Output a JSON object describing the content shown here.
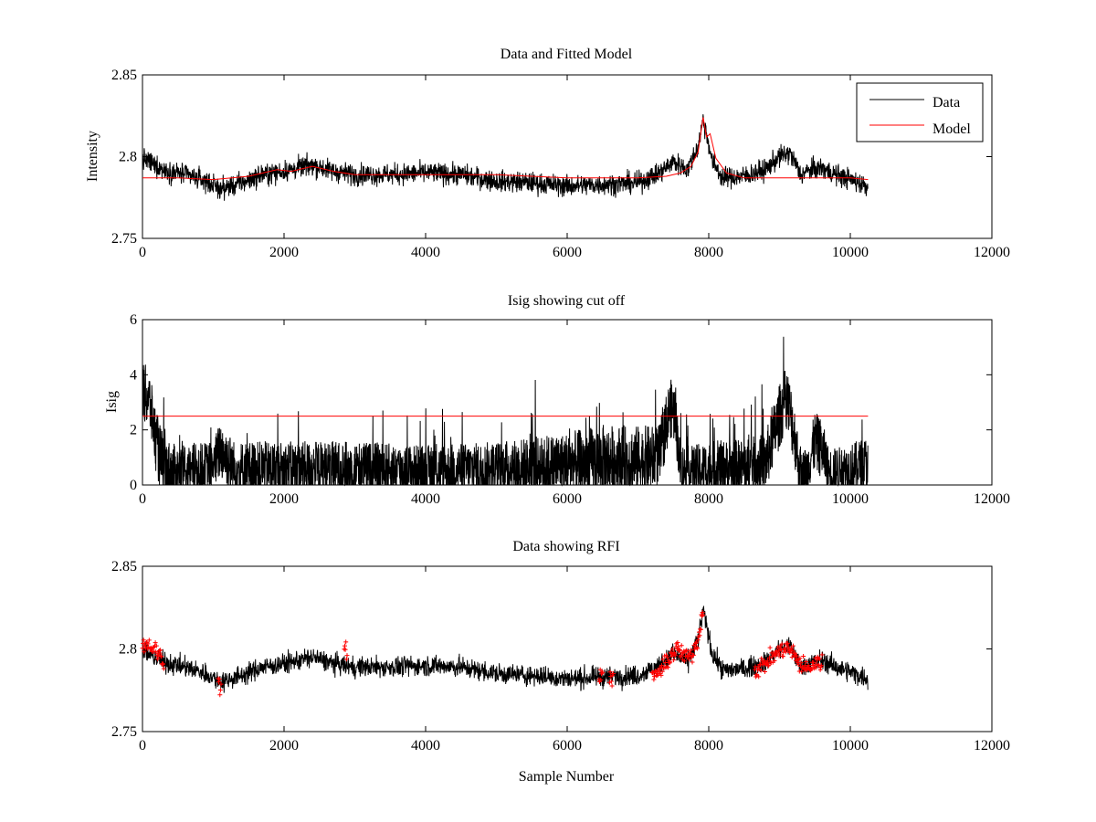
{
  "figure": {
    "background": "#ffffff",
    "data_color": "#000000",
    "model_color": "#ff0000",
    "xlabel": "Sample Number"
  },
  "chart_data": [
    {
      "type": "line",
      "title": "Data and Fitted Model",
      "xlabel": "",
      "ylabel": "Intensity",
      "xlim": [
        0,
        12000
      ],
      "ylim": [
        2.75,
        2.85
      ],
      "xticks": [
        0,
        2000,
        4000,
        6000,
        8000,
        10000,
        12000
      ],
      "xtick_labels": [
        "0",
        "2000",
        "4000",
        "6000",
        "8000",
        "10000",
        "12000"
      ],
      "yticks": [
        2.75,
        2.8,
        2.85
      ],
      "ytick_labels": [
        "2.75",
        "2.8",
        "2.85"
      ],
      "legend": {
        "location": "top-right",
        "entries": [
          "Data",
          "Model"
        ]
      },
      "series": [
        {
          "name": "Data",
          "color": "#000000",
          "noise": 0.0032,
          "x": [
            0,
            300,
            600,
            900,
            1100,
            1400,
            1700,
            2000,
            2200,
            2400,
            2700,
            3000,
            3500,
            4000,
            4500,
            5000,
            5500,
            6000,
            6500,
            7000,
            7300,
            7500,
            7700,
            7850,
            7920,
            7980,
            8050,
            8200,
            8500,
            8800,
            9000,
            9150,
            9300,
            9450,
            9600,
            9800,
            10000,
            10250
          ],
          "y": [
            2.799,
            2.792,
            2.789,
            2.785,
            2.78,
            2.784,
            2.789,
            2.791,
            2.793,
            2.795,
            2.791,
            2.789,
            2.789,
            2.79,
            2.789,
            2.785,
            2.784,
            2.782,
            2.783,
            2.784,
            2.79,
            2.797,
            2.792,
            2.806,
            2.823,
            2.812,
            2.797,
            2.787,
            2.788,
            2.792,
            2.8,
            2.802,
            2.789,
            2.792,
            2.793,
            2.789,
            2.786,
            2.782
          ]
        },
        {
          "name": "Model",
          "color": "#ff0000",
          "x": [
            0,
            500,
            1000,
            1500,
            1900,
            2100,
            2400,
            2700,
            3000,
            4000,
            5000,
            6000,
            7000,
            7400,
            7600,
            7750,
            7850,
            7920,
            7970,
            8020,
            8100,
            8250,
            8500,
            9000,
            10000,
            10250
          ],
          "y": [
            2.787,
            2.787,
            2.786,
            2.788,
            2.792,
            2.791,
            2.794,
            2.791,
            2.789,
            2.789,
            2.789,
            2.787,
            2.787,
            2.788,
            2.79,
            2.794,
            2.803,
            2.824,
            2.812,
            2.814,
            2.799,
            2.79,
            2.787,
            2.787,
            2.787,
            2.786
          ]
        }
      ]
    },
    {
      "type": "line",
      "title": "Isig showing cut off",
      "xlabel": "",
      "ylabel": "Isig",
      "xlim": [
        0,
        12000
      ],
      "ylim": [
        0,
        6
      ],
      "xticks": [
        0,
        2000,
        4000,
        6000,
        8000,
        10000,
        12000
      ],
      "xtick_labels": [
        "0",
        "2000",
        "4000",
        "6000",
        "8000",
        "10000",
        "12000"
      ],
      "yticks": [
        0,
        2,
        4,
        6
      ],
      "ytick_labels": [
        "0",
        "2",
        "4",
        "6"
      ],
      "series": [
        {
          "name": "Isig",
          "color": "#000000",
          "x": [
            0,
            100,
            200,
            300,
            500,
            1000,
            1100,
            1300,
            2000,
            2850,
            3000,
            4000,
            5000,
            6000,
            6500,
            7000,
            7300,
            7450,
            7520,
            7600,
            7700,
            8000,
            8500,
            8800,
            9000,
            9100,
            9200,
            9300,
            9400,
            9500,
            9600,
            9700,
            10000,
            10250
          ],
          "y": [
            3.5,
            3.0,
            1.5,
            0.5,
            0.5,
            0.7,
            1.3,
            0.6,
            0.6,
            0.6,
            0.6,
            0.55,
            0.6,
            0.75,
            0.85,
            0.9,
            1.0,
            2.8,
            2.6,
            0.7,
            0.5,
            0.6,
            0.6,
            0.8,
            2.5,
            3.2,
            2.0,
            0.3,
            0.6,
            1.6,
            1.3,
            0.5,
            0.6,
            0.8
          ],
          "envelope": [
            1.2,
            1.2,
            1.3,
            1.4,
            1.0,
            1.0,
            1.2,
            1.1,
            1.1,
            1.1,
            1.1,
            1.0,
            1.1,
            1.3,
            1.5,
            1.4,
            1.3,
            1.2,
            1.2,
            1.0,
            1.0,
            1.1,
            1.2,
            1.2,
            1.3,
            1.3,
            1.3,
            1.0,
            1.0,
            1.2,
            1.2,
            0.9,
            1.0,
            1.1
          ]
        },
        {
          "name": "Cut off",
          "color": "#ff0000",
          "x": [
            0,
            10250
          ],
          "y": [
            2.5,
            2.5
          ]
        }
      ]
    },
    {
      "type": "scatter",
      "title": "Data showing RFI",
      "xlabel": "Sample Number",
      "ylabel": "",
      "xlim": [
        0,
        12000
      ],
      "ylim": [
        2.75,
        2.85
      ],
      "xticks": [
        0,
        2000,
        4000,
        6000,
        8000,
        10000,
        12000
      ],
      "xtick_labels": [
        "0",
        "2000",
        "4000",
        "6000",
        "8000",
        "10000",
        "12000"
      ],
      "yticks": [
        2.75,
        2.8,
        2.85
      ],
      "ytick_labels": [
        "2.75",
        "2.8",
        "2.85"
      ],
      "series": [
        {
          "name": "Data",
          "color": "#000000",
          "noise": 0.003,
          "x": [
            0,
            300,
            600,
            900,
            1100,
            1400,
            1700,
            2000,
            2200,
            2400,
            2700,
            3000,
            3500,
            4000,
            4500,
            5000,
            5500,
            6000,
            6500,
            7000,
            7300,
            7500,
            7700,
            7850,
            7920,
            7980,
            8050,
            8200,
            8500,
            8800,
            9000,
            9150,
            9300,
            9450,
            9600,
            9800,
            10000,
            10250
          ],
          "y": [
            2.799,
            2.792,
            2.789,
            2.785,
            2.78,
            2.784,
            2.789,
            2.791,
            2.793,
            2.795,
            2.791,
            2.789,
            2.789,
            2.79,
            2.789,
            2.785,
            2.784,
            2.782,
            2.783,
            2.784,
            2.79,
            2.797,
            2.792,
            2.806,
            2.823,
            2.812,
            2.797,
            2.787,
            2.788,
            2.792,
            2.8,
            2.802,
            2.789,
            2.792,
            2.793,
            2.789,
            2.786,
            2.782
          ]
        },
        {
          "name": "RFI",
          "color": "#ff0000",
          "marker": "+",
          "segments": [
            {
              "x": [
                0,
                80,
                160,
                240,
                300
              ],
              "y": [
                2.802,
                2.803,
                2.8,
                2.797,
                2.791
              ]
            },
            {
              "x": [
                1070,
                1090,
                1110
              ],
              "y": [
                2.784,
                2.778,
                2.78
              ]
            },
            {
              "x": [
                2850,
                2870,
                2890
              ],
              "y": [
                2.798,
                2.801,
                2.796
              ]
            },
            {
              "x": [
                6450,
                6480,
                6500
              ],
              "y": [
                2.786,
                2.781,
                2.784
              ]
            },
            {
              "x": [
                6600,
                6630,
                6650
              ],
              "y": [
                2.785,
                2.78,
                2.783
              ]
            },
            {
              "x": [
                7200,
                7350,
                7450,
                7550,
                7650,
                7750,
                7850,
                7920
              ],
              "y": [
                2.783,
                2.788,
                2.795,
                2.8,
                2.796,
                2.795,
                2.806,
                2.824
              ]
            },
            {
              "x": [
                8650,
                8800,
                8950,
                9100,
                9200,
                9300,
                9400,
                9500,
                9600
              ],
              "y": [
                2.787,
                2.791,
                2.797,
                2.801,
                2.797,
                2.79,
                2.788,
                2.791,
                2.793
              ]
            }
          ]
        }
      ]
    }
  ]
}
